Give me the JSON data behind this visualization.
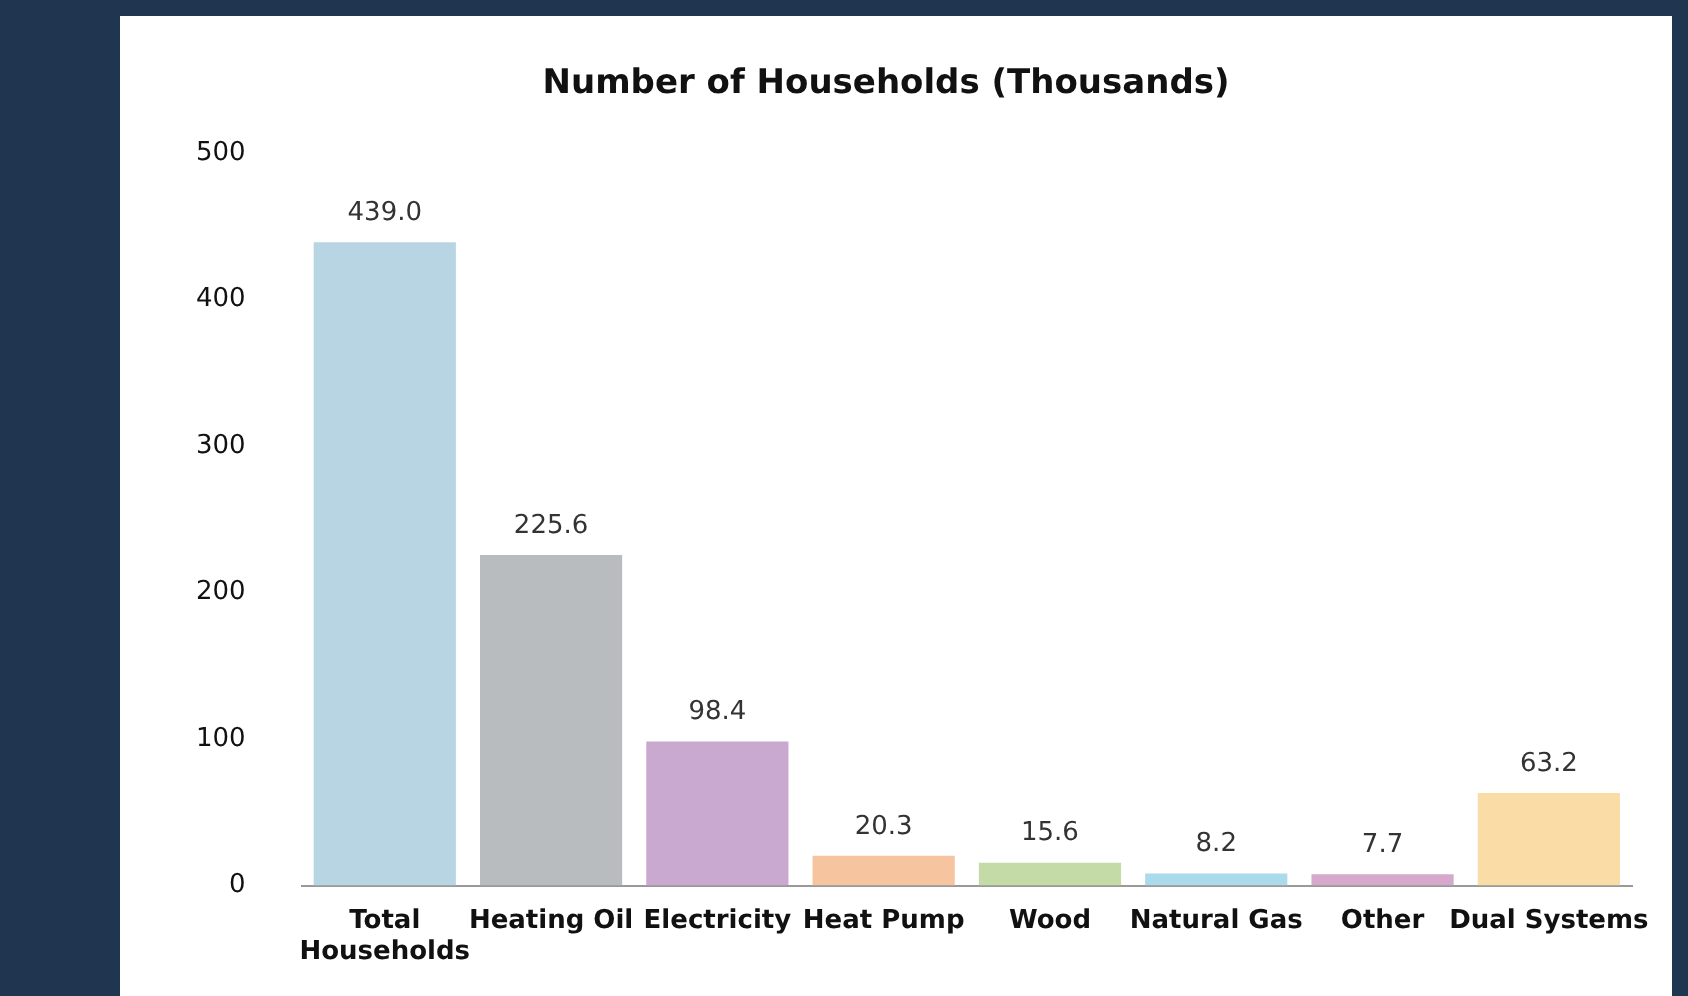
{
  "chart_data": {
    "type": "bar",
    "title": "Number of Households (Thousands)",
    "categories": [
      "Total Households",
      "Heating Oil",
      "Electricity",
      "Heat Pump",
      "Wood",
      "Natural Gas",
      "Other",
      "Dual Systems"
    ],
    "values": [
      439.0,
      225.6,
      98.4,
      20.3,
      15.6,
      8.2,
      7.7,
      63.2
    ],
    "colors": [
      "#b7d5e3",
      "#b9bcbf",
      "#c9a9cf",
      "#f7c4a0",
      "#c4dba8",
      "#a9dbec",
      "#d6a9cc",
      "#fadca6"
    ],
    "value_labels": [
      "439.0",
      "225.6",
      "98.4",
      "20.3",
      "15.6",
      "8.2",
      "7.7",
      "63.2"
    ],
    "ylim": [
      0,
      500
    ],
    "yticks": [
      0,
      100,
      200,
      300,
      400,
      500
    ],
    "grid": false,
    "legend": false
  }
}
